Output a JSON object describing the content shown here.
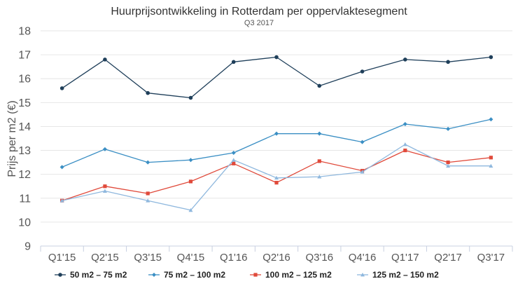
{
  "chart_data": {
    "type": "line",
    "title": "Huurprijsontwikkeling in Rotterdam per oppervlaktesegment",
    "subtitle": "Q3 2017",
    "xlabel": "",
    "ylabel": "Prijs per m2 (€)",
    "ylim": [
      9,
      18
    ],
    "yticks": [
      9,
      10,
      11,
      12,
      13,
      14,
      15,
      16,
      17,
      18
    ],
    "grid": true,
    "legend_position": "bottom",
    "categories": [
      "Q1'15",
      "Q2'15",
      "Q3'15",
      "Q4'15",
      "Q1'16",
      "Q2'16",
      "Q3'16",
      "Q4'16",
      "Q1'17",
      "Q2'17",
      "Q3'17"
    ],
    "series": [
      {
        "name": "50 m2 – 75 m2",
        "color": "#1f3f5a",
        "marker": "circle",
        "values": [
          15.6,
          16.8,
          15.4,
          15.2,
          16.7,
          16.9,
          15.7,
          16.3,
          16.8,
          16.7,
          16.9
        ]
      },
      {
        "name": "75 m2 – 100 m2",
        "color": "#3b8fc4",
        "marker": "diamond",
        "values": [
          12.3,
          13.05,
          12.5,
          12.6,
          12.9,
          13.7,
          13.7,
          13.35,
          14.1,
          13.9,
          14.3
        ]
      },
      {
        "name": "100 m2 – 125 m2",
        "color": "#e04a3b",
        "marker": "square",
        "values": [
          10.9,
          11.5,
          11.2,
          11.7,
          12.45,
          11.65,
          12.55,
          12.15,
          13.0,
          12.5,
          12.7
        ]
      },
      {
        "name": "125 m2 – 150 m2",
        "color": "#8fb8de",
        "marker": "triangle",
        "values": [
          10.9,
          11.3,
          10.9,
          10.5,
          12.6,
          11.85,
          11.9,
          12.1,
          13.25,
          12.35,
          12.35
        ]
      }
    ]
  }
}
